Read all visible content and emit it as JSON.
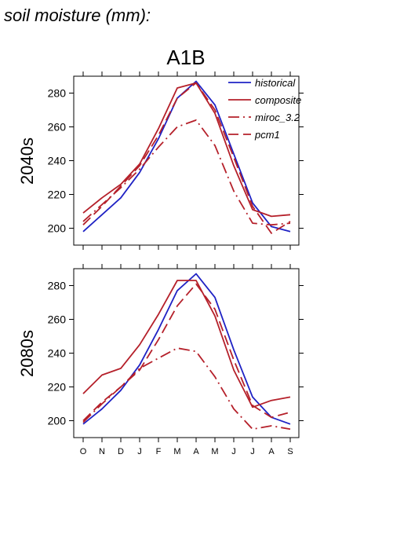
{
  "heading": "soil moisture (mm):",
  "scenario_title": "A1B",
  "colors": {
    "historical": "#1f22c4",
    "model": "#b5202a",
    "axis": "#000000"
  },
  "legend": {
    "placement": "top-right",
    "items": [
      "historical",
      "composite",
      "miroc_3.2",
      "pcm1"
    ]
  },
  "chart_data": [
    {
      "type": "line",
      "title": "A1B",
      "ylabel": "2040s",
      "categories": [
        "O",
        "N",
        "D",
        "J",
        "F",
        "M",
        "A",
        "M",
        "J",
        "J",
        "A",
        "S"
      ],
      "ylim": [
        190,
        290
      ],
      "yticks": [
        200,
        220,
        240,
        260,
        280
      ],
      "grid": false,
      "series": [
        {
          "name": "historical",
          "style": "solid",
          "values": [
            198,
            208,
            218,
            233,
            253,
            277,
            287,
            273,
            244,
            215,
            201,
            198
          ]
        },
        {
          "name": "composite",
          "style": "solid",
          "values": [
            209,
            218,
            226,
            238,
            259,
            283,
            286,
            268,
            237,
            211,
            207,
            208
          ]
        },
        {
          "name": "miroc_3.2",
          "style": "dashdot",
          "values": [
            204,
            214,
            224,
            235,
            248,
            260,
            264,
            249,
            222,
            203,
            202,
            203
          ]
        },
        {
          "name": "pcm1",
          "style": "longdash",
          "values": [
            202,
            213,
            225,
            237,
            255,
            277,
            286,
            270,
            242,
            213,
            197,
            204
          ]
        }
      ]
    },
    {
      "type": "line",
      "title": "",
      "ylabel": "2080s",
      "categories": [
        "O",
        "N",
        "D",
        "J",
        "F",
        "M",
        "A",
        "M",
        "J",
        "J",
        "A",
        "S"
      ],
      "ylim": [
        190,
        290
      ],
      "yticks": [
        200,
        220,
        240,
        260,
        280
      ],
      "grid": false,
      "series": [
        {
          "name": "historical",
          "style": "solid",
          "values": [
            198,
            207,
            218,
            233,
            254,
            277,
            287,
            273,
            242,
            214,
            202,
            198
          ]
        },
        {
          "name": "composite",
          "style": "solid",
          "values": [
            216,
            227,
            231,
            245,
            263,
            283,
            283,
            262,
            230,
            208,
            212,
            214
          ]
        },
        {
          "name": "miroc_3.2",
          "style": "dashdot",
          "values": [
            199,
            210,
            220,
            231,
            237,
            243,
            241,
            226,
            207,
            195,
            197,
            195
          ]
        },
        {
          "name": "pcm1",
          "style": "longdash",
          "values": [
            200,
            211,
            220,
            230,
            248,
            268,
            281,
            266,
            236,
            209,
            202,
            205
          ]
        }
      ]
    }
  ]
}
